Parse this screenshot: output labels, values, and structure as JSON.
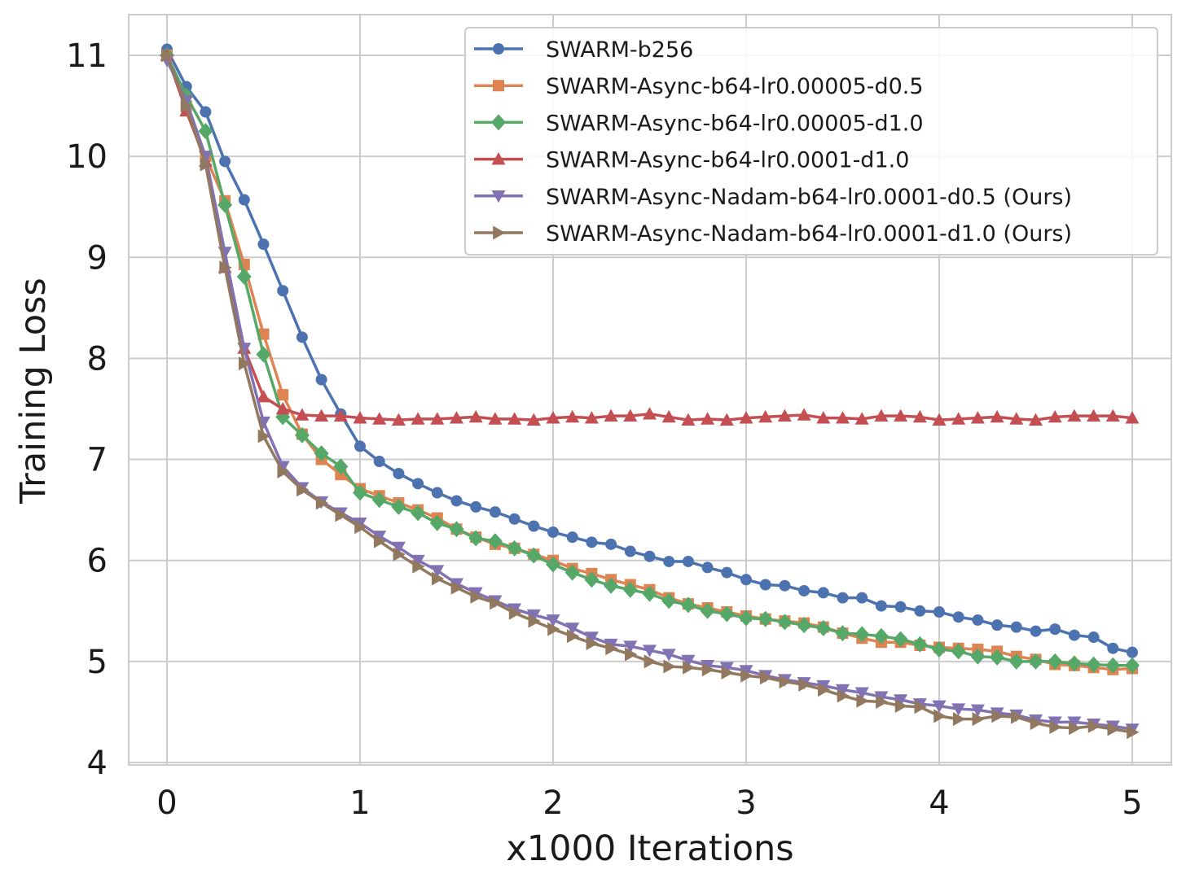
{
  "chart_data": {
    "type": "line",
    "xlabel": "x1000 Iterations",
    "ylabel": "Training Loss",
    "xlim": [
      -0.2,
      5.2
    ],
    "ylim": [
      3.98,
      11.4
    ],
    "xticks": [
      0,
      1,
      2,
      3,
      4,
      5
    ],
    "yticks": [
      4,
      5,
      6,
      7,
      8,
      9,
      10,
      11
    ],
    "grid": true,
    "legend_position": "top-right",
    "x": [
      0,
      0.1,
      0.2,
      0.3,
      0.4,
      0.5,
      0.6,
      0.7,
      0.8,
      0.9,
      1.0,
      1.1,
      1.2,
      1.3,
      1.4,
      1.5,
      1.6,
      1.7,
      1.8,
      1.9,
      2.0,
      2.1,
      2.2,
      2.3,
      2.4,
      2.5,
      2.6,
      2.7,
      2.8,
      2.9,
      3.0,
      3.1,
      3.2,
      3.3,
      3.4,
      3.5,
      3.6,
      3.7,
      3.8,
      3.9,
      4.0,
      4.1,
      4.2,
      4.3,
      4.4,
      4.5,
      4.6,
      4.7,
      4.8,
      4.9,
      5.0
    ],
    "series": [
      {
        "name": "SWARM-b256",
        "color": "#4c72b0",
        "marker": "circle",
        "values": [
          11.06,
          10.69,
          10.44,
          9.95,
          9.57,
          9.13,
          8.67,
          8.21,
          7.79,
          7.45,
          7.13,
          6.98,
          6.86,
          6.76,
          6.67,
          6.59,
          6.53,
          6.48,
          6.41,
          6.34,
          6.28,
          6.23,
          6.18,
          6.16,
          6.09,
          6.04,
          5.99,
          5.99,
          5.93,
          5.88,
          5.81,
          5.76,
          5.75,
          5.7,
          5.68,
          5.63,
          5.63,
          5.55,
          5.54,
          5.5,
          5.49,
          5.44,
          5.41,
          5.36,
          5.34,
          5.3,
          5.32,
          5.26,
          5.24,
          5.13,
          5.09
        ]
      },
      {
        "name": "SWARM-Async-b64-lr0.00005-d0.5",
        "color": "#dd8452",
        "marker": "square",
        "values": [
          11.0,
          10.5,
          10.0,
          9.56,
          8.93,
          8.24,
          7.64,
          7.25,
          7.0,
          6.85,
          6.71,
          6.64,
          6.57,
          6.5,
          6.42,
          6.31,
          6.23,
          6.16,
          6.12,
          6.06,
          6.0,
          5.92,
          5.87,
          5.81,
          5.76,
          5.71,
          5.63,
          5.57,
          5.53,
          5.49,
          5.45,
          5.42,
          5.4,
          5.38,
          5.34,
          5.28,
          5.23,
          5.19,
          5.19,
          5.16,
          5.14,
          5.13,
          5.12,
          5.1,
          5.05,
          5.02,
          4.97,
          4.96,
          4.94,
          4.92,
          4.93
        ]
      },
      {
        "name": "SWARM-Async-b64-lr0.00005-d1.0",
        "color": "#55a868",
        "marker": "diamond",
        "values": [
          11.0,
          10.6,
          10.25,
          9.52,
          8.81,
          8.04,
          7.42,
          7.24,
          7.06,
          6.93,
          6.67,
          6.6,
          6.53,
          6.47,
          6.37,
          6.31,
          6.22,
          6.19,
          6.12,
          6.05,
          5.96,
          5.88,
          5.81,
          5.75,
          5.71,
          5.67,
          5.6,
          5.56,
          5.5,
          5.47,
          5.43,
          5.42,
          5.39,
          5.36,
          5.33,
          5.28,
          5.27,
          5.25,
          5.22,
          5.17,
          5.12,
          5.1,
          5.05,
          5.04,
          5.0,
          5.0,
          5.0,
          4.98,
          4.97,
          4.96,
          4.96
        ]
      },
      {
        "name": "SWARM-Async-b64-lr0.0001-d1.0",
        "color": "#c44e52",
        "marker": "triangle-up",
        "values": [
          11.0,
          10.45,
          9.95,
          8.9,
          8.1,
          7.62,
          7.5,
          7.44,
          7.43,
          7.43,
          7.41,
          7.4,
          7.39,
          7.4,
          7.4,
          7.41,
          7.42,
          7.4,
          7.4,
          7.39,
          7.41,
          7.42,
          7.41,
          7.43,
          7.43,
          7.45,
          7.42,
          7.39,
          7.4,
          7.39,
          7.41,
          7.42,
          7.43,
          7.44,
          7.41,
          7.41,
          7.4,
          7.43,
          7.43,
          7.42,
          7.39,
          7.4,
          7.41,
          7.42,
          7.4,
          7.39,
          7.42,
          7.43,
          7.43,
          7.43,
          7.41
        ]
      },
      {
        "name": "SWARM-Async-Nadam-b64-lr0.0001-d0.5 (Ours)",
        "color": "#8172b3",
        "marker": "triangle-down",
        "values": [
          10.95,
          10.55,
          10.0,
          9.05,
          8.1,
          7.37,
          6.93,
          6.72,
          6.58,
          6.47,
          6.37,
          6.24,
          6.13,
          6.0,
          5.9,
          5.77,
          5.68,
          5.6,
          5.52,
          5.46,
          5.41,
          5.33,
          5.24,
          5.17,
          5.15,
          5.11,
          5.07,
          5.01,
          4.96,
          4.94,
          4.91,
          4.86,
          4.82,
          4.79,
          4.76,
          4.72,
          4.69,
          4.65,
          4.62,
          4.58,
          4.56,
          4.53,
          4.52,
          4.49,
          4.47,
          4.42,
          4.4,
          4.4,
          4.38,
          4.36,
          4.33
        ]
      },
      {
        "name": "SWARM-Async-Nadam-b64-lr0.0001-d1.0 (Ours)",
        "color": "#937860",
        "marker": "triangle-right",
        "values": [
          11.0,
          10.5,
          9.92,
          8.9,
          7.95,
          7.23,
          6.88,
          6.7,
          6.57,
          6.45,
          6.33,
          6.19,
          6.06,
          5.94,
          5.82,
          5.73,
          5.64,
          5.58,
          5.48,
          5.4,
          5.32,
          5.25,
          5.18,
          5.13,
          5.07,
          5.0,
          4.95,
          4.94,
          4.92,
          4.89,
          4.86,
          4.84,
          4.8,
          4.77,
          4.72,
          4.66,
          4.61,
          4.6,
          4.56,
          4.55,
          4.46,
          4.43,
          4.43,
          4.46,
          4.45,
          4.39,
          4.35,
          4.34,
          4.36,
          4.33,
          4.3
        ]
      }
    ]
  }
}
